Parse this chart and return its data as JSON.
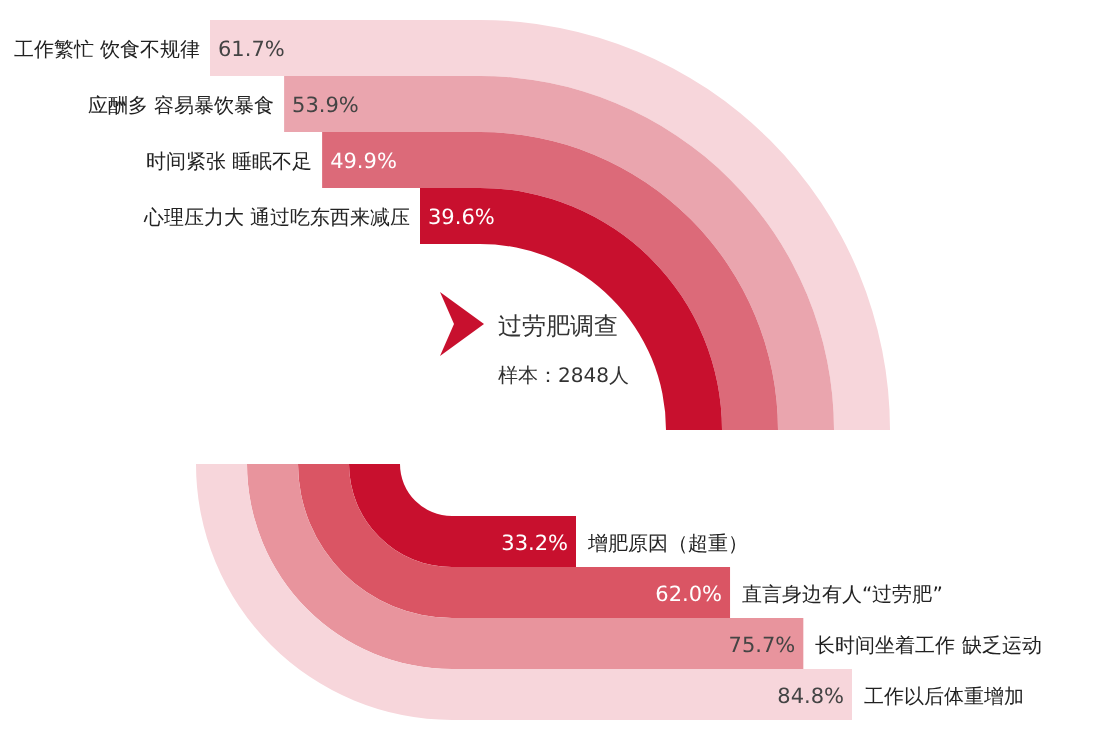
{
  "chart_data": [
    {
      "type": "other",
      "title": "过劳肥调查",
      "subtitle": "样本：2848人",
      "categories": [
        "工作繁忙  饮食不规律",
        "应酬多  容易暴饮暴食",
        "时间紧张  睡眠不足",
        "心理压力大  通过吃东西来减压"
      ],
      "values": [
        61.7,
        53.9,
        49.9,
        39.6
      ],
      "value_labels": [
        "61.7%",
        "53.9%",
        "49.9%",
        "39.6%"
      ],
      "colors": [
        "#f7d6db",
        "#eaa5ae",
        "#dc6a79",
        "#c8102e"
      ]
    },
    {
      "type": "other",
      "categories": [
        "增肥原因（超重）",
        "直言身边有人“过劳肥”",
        "长时间坐着工作  缺乏运动",
        "工作以后体重增加"
      ],
      "values": [
        33.2,
        62.0,
        75.7,
        84.8
      ],
      "value_labels": [
        "33.2%",
        "62.0%",
        "75.7%",
        "84.8%"
      ],
      "colors": [
        "#c8102e",
        "#da5564",
        "#e8949d",
        "#f7d6db"
      ]
    }
  ]
}
